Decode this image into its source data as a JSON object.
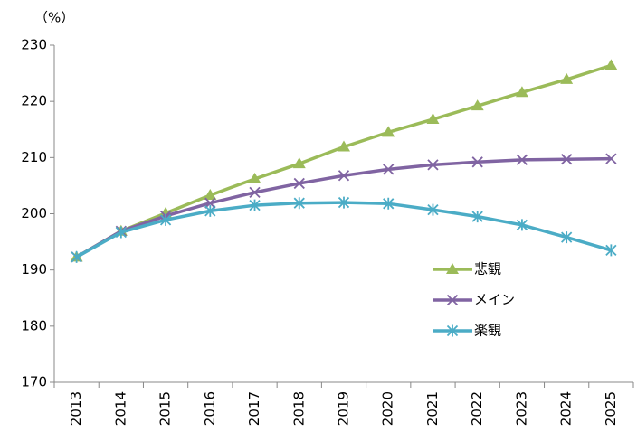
{
  "chart_data": {
    "type": "line",
    "y_label": "（%）",
    "categories": [
      "2013",
      "2014",
      "2015",
      "2016",
      "2017",
      "2018",
      "2019",
      "2020",
      "2021",
      "2022",
      "2023",
      "2024",
      "2025"
    ],
    "series": [
      {
        "name": "悲観",
        "color": "#9bbb59",
        "marker": "triangle",
        "values": [
          192.3,
          196.9,
          200.1,
          203.3,
          206.2,
          208.9,
          211.9,
          214.5,
          216.8,
          219.2,
          221.6,
          223.9,
          226.4
        ]
      },
      {
        "name": "メイン",
        "color": "#8064a2",
        "marker": "x",
        "values": [
          192.3,
          196.9,
          199.6,
          201.9,
          203.8,
          205.4,
          206.8,
          207.9,
          208.7,
          209.2,
          209.6,
          209.7,
          209.8
        ]
      },
      {
        "name": "楽観",
        "color": "#4bacc6",
        "marker": "star",
        "values": [
          192.3,
          196.7,
          198.9,
          200.5,
          201.5,
          201.9,
          202.0,
          201.8,
          200.7,
          199.5,
          198.0,
          195.8,
          193.5
        ]
      }
    ],
    "ylim": [
      170,
      230
    ],
    "yticks": [
      170,
      180,
      190,
      200,
      210,
      220,
      230
    ],
    "grid": false,
    "legend": "right"
  }
}
